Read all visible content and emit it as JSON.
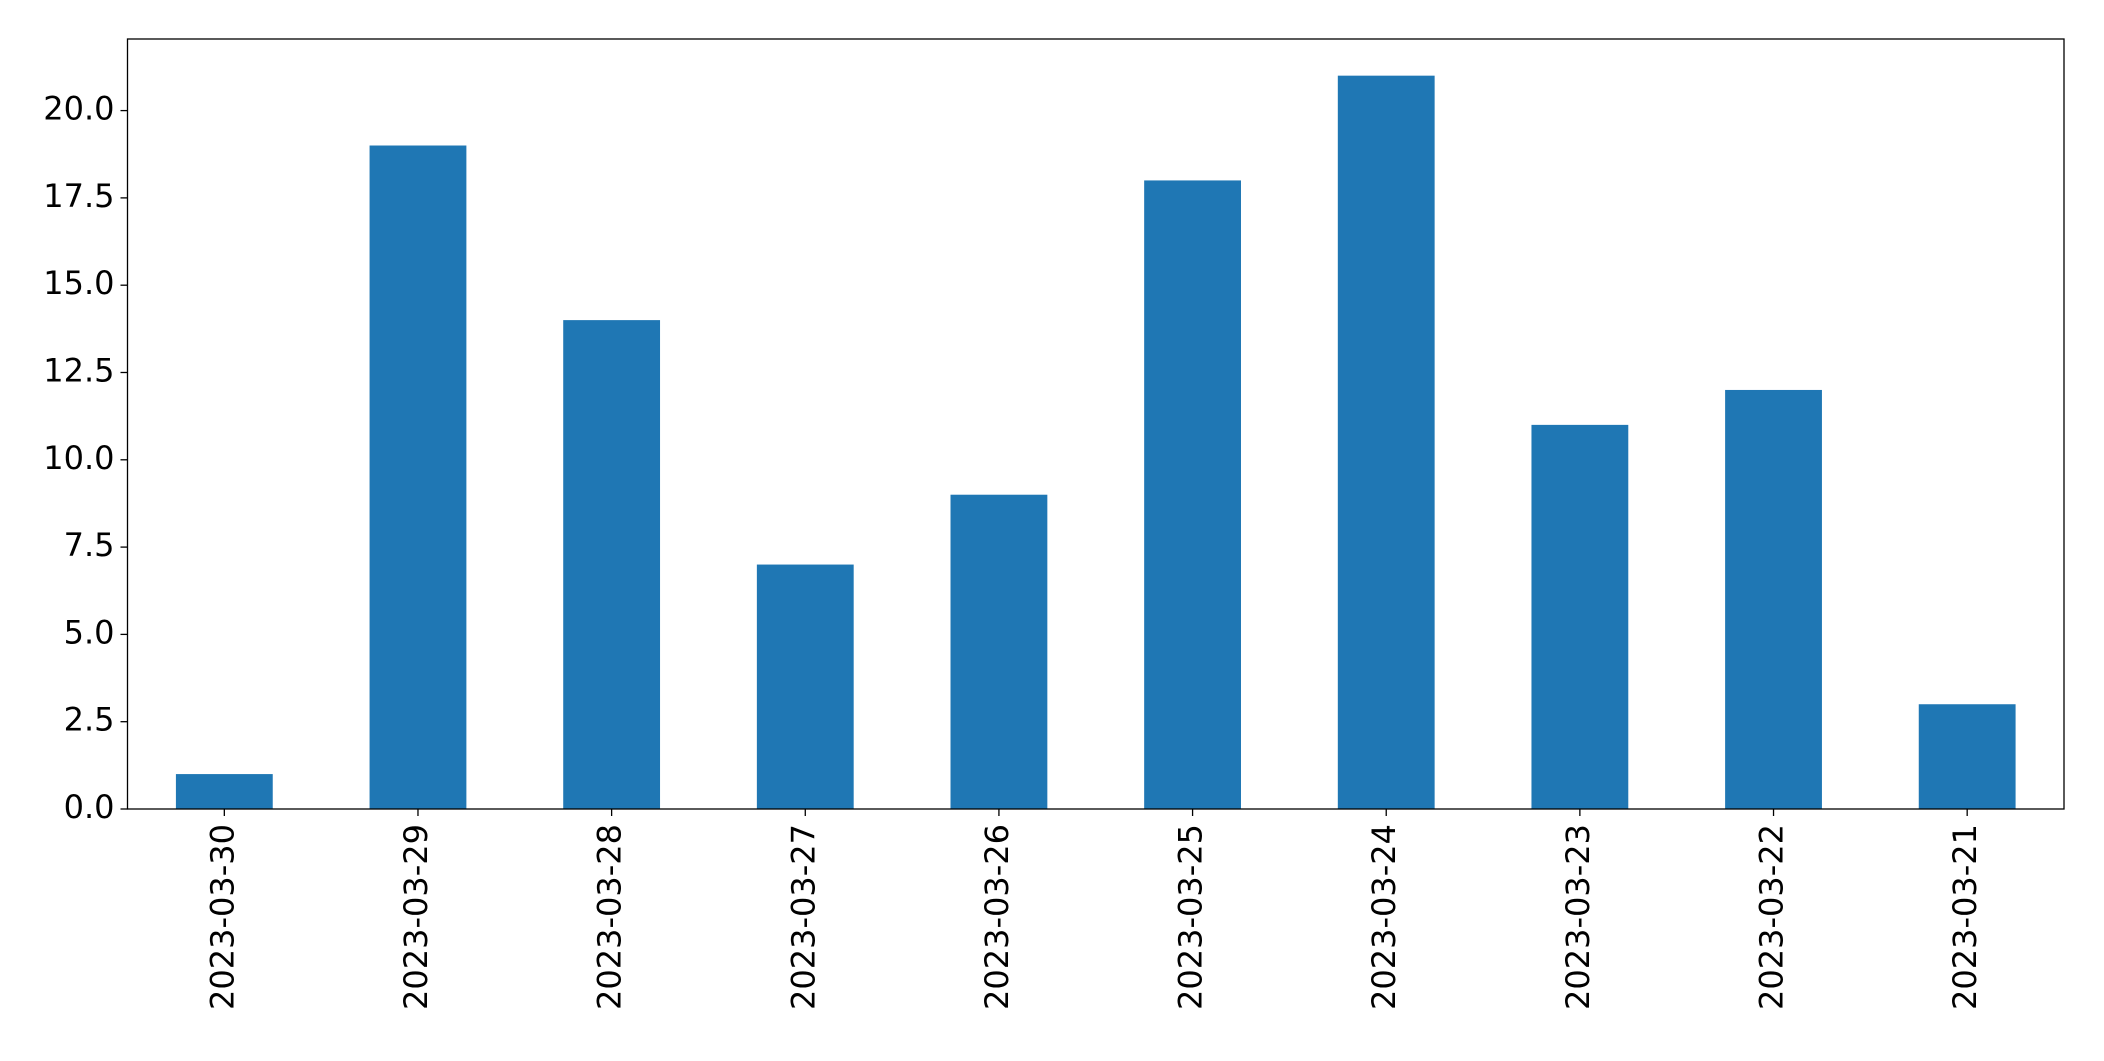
{
  "chart_data": {
    "type": "bar",
    "categories": [
      "2023-03-30",
      "2023-03-29",
      "2023-03-28",
      "2023-03-27",
      "2023-03-26",
      "2023-03-25",
      "2023-03-24",
      "2023-03-23",
      "2023-03-22",
      "2023-03-21"
    ],
    "values": [
      1,
      19,
      14,
      7,
      9,
      18,
      21,
      11,
      12,
      3
    ],
    "color": "#1f77b4",
    "ylim": [
      0,
      22.05
    ],
    "yticks": [
      {
        "value": 0,
        "label": "0.0"
      },
      2.5,
      {
        "value": 5,
        "label": "5.0"
      },
      7.5,
      {
        "value": 10,
        "label": "10.0"
      },
      12.5,
      {
        "value": 15,
        "label": "15.0"
      },
      17.5,
      {
        "value": 20,
        "label": "20.0"
      }
    ],
    "grid": false
  }
}
